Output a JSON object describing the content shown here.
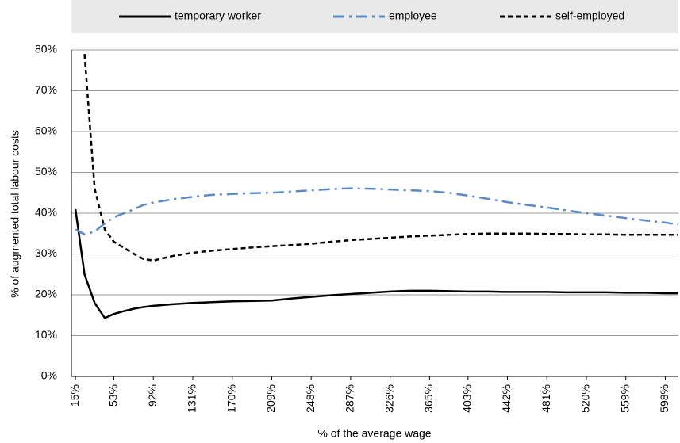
{
  "chart_data": {
    "type": "line",
    "xlabel": "% of the average wage",
    "ylabel": "% of augmented total labour costs",
    "x": [
      15,
      24,
      34,
      44,
      53,
      63,
      73,
      82,
      92,
      111,
      131,
      150,
      170,
      190,
      209,
      229,
      248,
      268,
      287,
      307,
      326,
      346,
      365,
      384,
      403,
      423,
      442,
      462,
      481,
      500,
      520,
      540,
      559,
      579,
      598,
      611
    ],
    "series": [
      {
        "name": "temporary worker",
        "color": "#000000",
        "dash": "solid",
        "values": [
          41,
          25,
          18,
          14.3,
          15.3,
          16,
          16.6,
          17,
          17.3,
          17.7,
          18,
          18.2,
          18.4,
          18.5,
          18.6,
          19.1,
          19.5,
          19.9,
          20.2,
          20.5,
          20.8,
          21,
          21,
          20.9,
          20.8,
          20.8,
          20.7,
          20.7,
          20.7,
          20.6,
          20.6,
          20.6,
          20.5,
          20.5,
          20.4,
          20.4
        ]
      },
      {
        "name": "employee",
        "color": "#5b8ac6",
        "dash": "dashdot",
        "values": [
          36,
          34.8,
          35.5,
          37.5,
          39,
          40,
          41,
          42,
          42.6,
          43.4,
          44,
          44.5,
          44.7,
          44.9,
          45,
          45.3,
          45.6,
          45.9,
          46.1,
          46,
          45.8,
          45.6,
          45.4,
          45,
          44.3,
          43.5,
          42.7,
          42,
          41.4,
          40.7,
          40,
          39.4,
          38.8,
          38.2,
          37.7,
          37.2
        ]
      },
      {
        "name": "self-employed",
        "color": "#000000",
        "dash": "dashed",
        "values": [
          null,
          79,
          46,
          36,
          33,
          31.5,
          30,
          28.8,
          28.4,
          29.5,
          30.3,
          30.8,
          31.2,
          31.6,
          31.9,
          32.2,
          32.5,
          33,
          33.4,
          33.7,
          34,
          34.3,
          34.5,
          34.7,
          34.9,
          35,
          35,
          35,
          34.9,
          34.9,
          34.8,
          34.8,
          34.7,
          34.7,
          34.7,
          34.7
        ]
      }
    ],
    "xlim": [
      11,
      611
    ],
    "xticks": [
      {
        "value": 15,
        "label": "15%"
      },
      {
        "value": 53,
        "label": "53%"
      },
      {
        "value": 92,
        "label": "92%"
      },
      {
        "value": 131,
        "label": "131%"
      },
      {
        "value": 170,
        "label": "170%"
      },
      {
        "value": 209,
        "label": "209%"
      },
      {
        "value": 248,
        "label": "248%"
      },
      {
        "value": 287,
        "label": "287%"
      },
      {
        "value": 326,
        "label": "326%"
      },
      {
        "value": 365,
        "label": "365%"
      },
      {
        "value": 403,
        "label": "403%"
      },
      {
        "value": 442,
        "label": "442%"
      },
      {
        "value": 481,
        "label": "481%"
      },
      {
        "value": 520,
        "label": "520%"
      },
      {
        "value": 559,
        "label": "559%"
      },
      {
        "value": 598,
        "label": "598%"
      }
    ],
    "ylim": [
      0,
      80
    ],
    "yticks": [
      {
        "value": 0,
        "label": "0%"
      },
      {
        "value": 10,
        "label": "10%"
      },
      {
        "value": 20,
        "label": "20%"
      },
      {
        "value": 30,
        "label": "30%"
      },
      {
        "value": 40,
        "label": "40%"
      },
      {
        "value": 50,
        "label": "50%"
      },
      {
        "value": 60,
        "label": "60%"
      },
      {
        "value": 70,
        "label": "70%"
      },
      {
        "value": 80,
        "label": "80%"
      }
    ],
    "grid": true,
    "legend": "top"
  }
}
